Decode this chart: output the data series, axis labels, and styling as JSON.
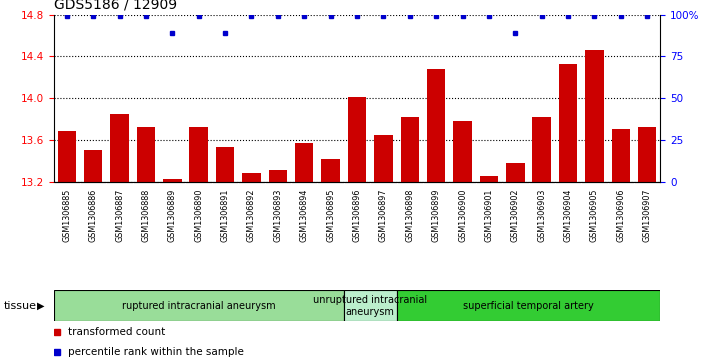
{
  "title": "GDS5186 / 12909",
  "samples": [
    "GSM1306885",
    "GSM1306886",
    "GSM1306887",
    "GSM1306888",
    "GSM1306889",
    "GSM1306890",
    "GSM1306891",
    "GSM1306892",
    "GSM1306893",
    "GSM1306894",
    "GSM1306895",
    "GSM1306896",
    "GSM1306897",
    "GSM1306898",
    "GSM1306899",
    "GSM1306900",
    "GSM1306901",
    "GSM1306902",
    "GSM1306903",
    "GSM1306904",
    "GSM1306905",
    "GSM1306906",
    "GSM1306907"
  ],
  "bar_values": [
    13.68,
    13.5,
    13.85,
    13.72,
    13.22,
    13.72,
    13.53,
    13.28,
    13.31,
    13.57,
    13.42,
    14.01,
    13.65,
    13.82,
    14.28,
    13.78,
    13.25,
    13.38,
    13.82,
    14.33,
    14.46,
    13.7,
    13.72
  ],
  "percentile_values": [
    99,
    99,
    99,
    99,
    89,
    99,
    89,
    99,
    99,
    99,
    99,
    99,
    99,
    99,
    99,
    99,
    99,
    89,
    99,
    99,
    99,
    99,
    99
  ],
  "ylim_left": [
    13.2,
    14.8
  ],
  "ylim_right": [
    0,
    100
  ],
  "yticks_left": [
    13.2,
    13.6,
    14.0,
    14.4,
    14.8
  ],
  "yticks_right": [
    0,
    25,
    50,
    75,
    100
  ],
  "bar_color": "#cc0000",
  "dot_color": "#0000cc",
  "plot_bg_color": "#ffffff",
  "xtick_bg_color": "#d8d8d8",
  "groups": [
    {
      "label": "ruptured intracranial aneurysm",
      "start": 0,
      "end": 11,
      "color": "#99dd99"
    },
    {
      "label": "unruptured intracranial\naneurysm",
      "start": 11,
      "end": 13,
      "color": "#bbeecc"
    },
    {
      "label": "superficial temporal artery",
      "start": 13,
      "end": 23,
      "color": "#33cc33"
    }
  ],
  "legend_items": [
    {
      "label": "transformed count",
      "color": "#cc0000"
    },
    {
      "label": "percentile rank within the sample",
      "color": "#0000cc"
    }
  ],
  "tissue_label": "tissue",
  "title_fontsize": 10,
  "tick_fontsize": 7,
  "sample_fontsize": 6
}
